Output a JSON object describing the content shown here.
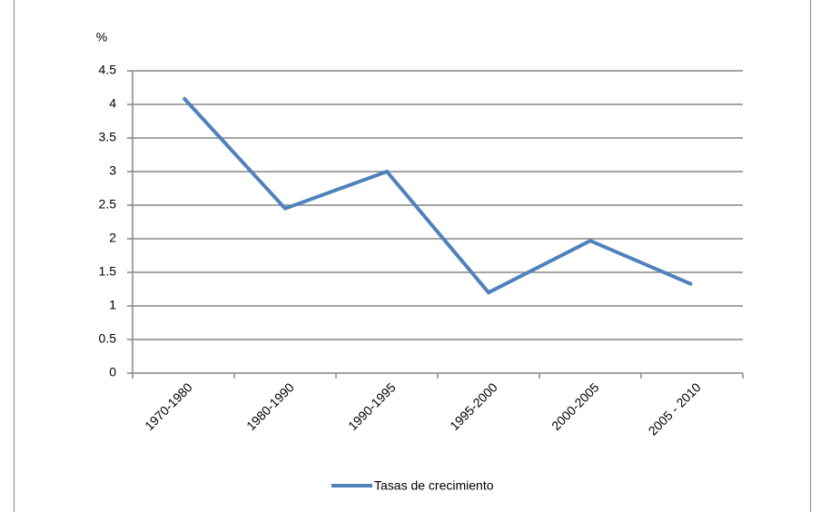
{
  "chart_data": {
    "type": "line",
    "y_label": "%",
    "categories": [
      "1970-1980",
      "1980-1990",
      "1990-1995",
      "1995-2000",
      "2000-2005",
      "2005 - 2010"
    ],
    "series": [
      {
        "name": "Tasas de crecimiento",
        "color": "#4f81bd",
        "values": [
          4.1,
          2.45,
          3.0,
          1.2,
          1.97,
          1.32
        ]
      }
    ],
    "ylim": [
      0,
      4.5
    ],
    "yticks": [
      0,
      0.5,
      1,
      1.5,
      2,
      2.5,
      3,
      3.5,
      4,
      4.5
    ],
    "grid": true,
    "legend": "bottom"
  }
}
